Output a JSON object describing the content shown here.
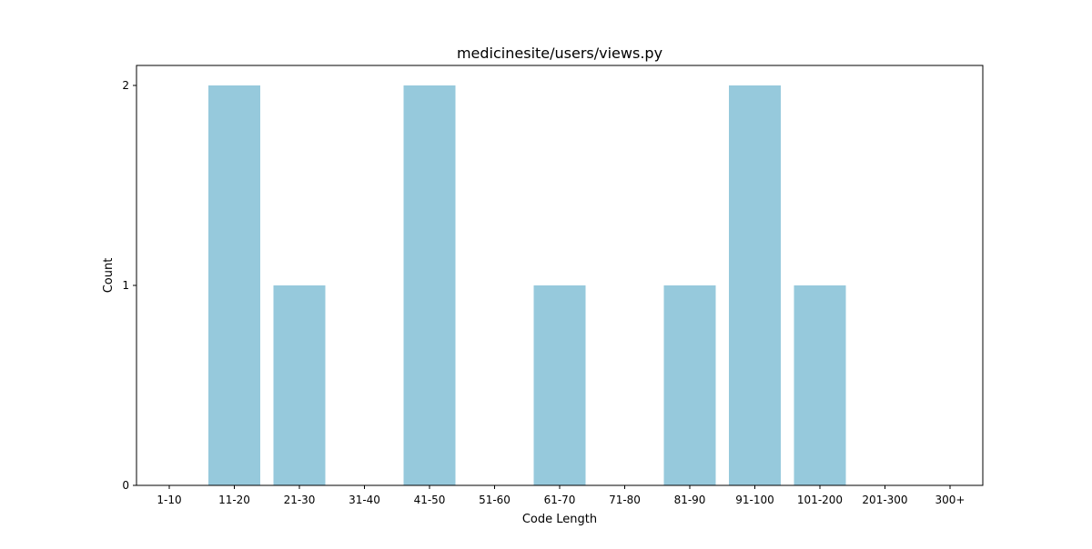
{
  "chart_data": {
    "type": "bar",
    "title": "medicinesite/users/views.py",
    "xlabel": "Code Length",
    "ylabel": "Count",
    "categories": [
      "1-10",
      "11-20",
      "21-30",
      "31-40",
      "41-50",
      "51-60",
      "61-70",
      "71-80",
      "81-90",
      "91-100",
      "101-200",
      "201-300",
      "300+"
    ],
    "values": [
      0,
      2,
      1,
      0,
      2,
      0,
      1,
      0,
      1,
      2,
      1,
      0,
      0
    ],
    "yticks": [
      0,
      1,
      2
    ],
    "ylim": [
      0,
      2.1
    ],
    "bar_color": "#96c9dc",
    "grid": false,
    "legend": "none"
  }
}
